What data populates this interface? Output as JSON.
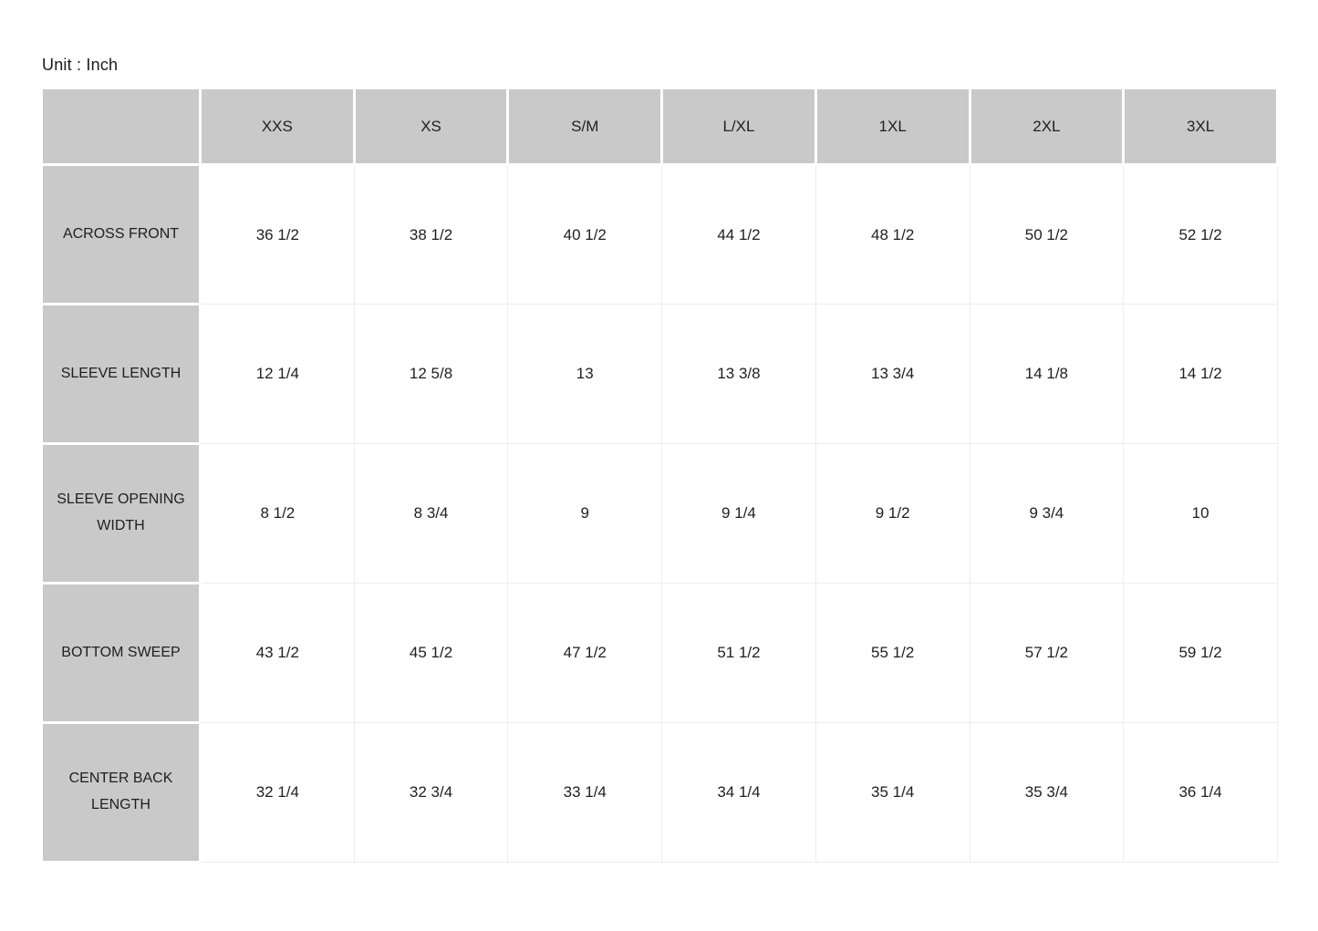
{
  "page": {
    "unit_label": "Unit : Inch"
  },
  "colors": {
    "header_cell_bg": "#c9c9c9",
    "cell_divider": "#ededed",
    "cell_gap": "#ffffff",
    "text": "#1f1f1f",
    "page_bg": "#ffffff"
  },
  "chart_data": {
    "type": "table",
    "title": "Size chart (Unit : Inch)",
    "columns": [
      "",
      "XXS",
      "XS",
      "S/M",
      "L/XL",
      "1XL",
      "2XL",
      "3XL"
    ],
    "rows": [
      {
        "label": "ACROSS FRONT",
        "values": [
          "36 1/2",
          "38 1/2",
          "40 1/2",
          "44 1/2",
          "48 1/2",
          "50 1/2",
          "52 1/2"
        ]
      },
      {
        "label": "SLEEVE LENGTH",
        "values": [
          "12 1/4",
          "12 5/8",
          "13",
          "13 3/8",
          "13 3/4",
          "14 1/8",
          "14 1/2"
        ]
      },
      {
        "label": "SLEEVE OPENING WIDTH",
        "values": [
          "8 1/2",
          "8 3/4",
          "9",
          "9 1/4",
          "9 1/2",
          "9 3/4",
          "10"
        ]
      },
      {
        "label": "BOTTOM SWEEP",
        "values": [
          "43 1/2",
          "45 1/2",
          "47 1/2",
          "51 1/2",
          "55 1/2",
          "57 1/2",
          "59 1/2"
        ]
      },
      {
        "label": "CENTER BACK LENGTH",
        "values": [
          "32 1/4",
          "32 3/4",
          "33 1/4",
          "34 1/4",
          "35 1/4",
          "35 3/4",
          "36 1/4"
        ]
      }
    ]
  }
}
